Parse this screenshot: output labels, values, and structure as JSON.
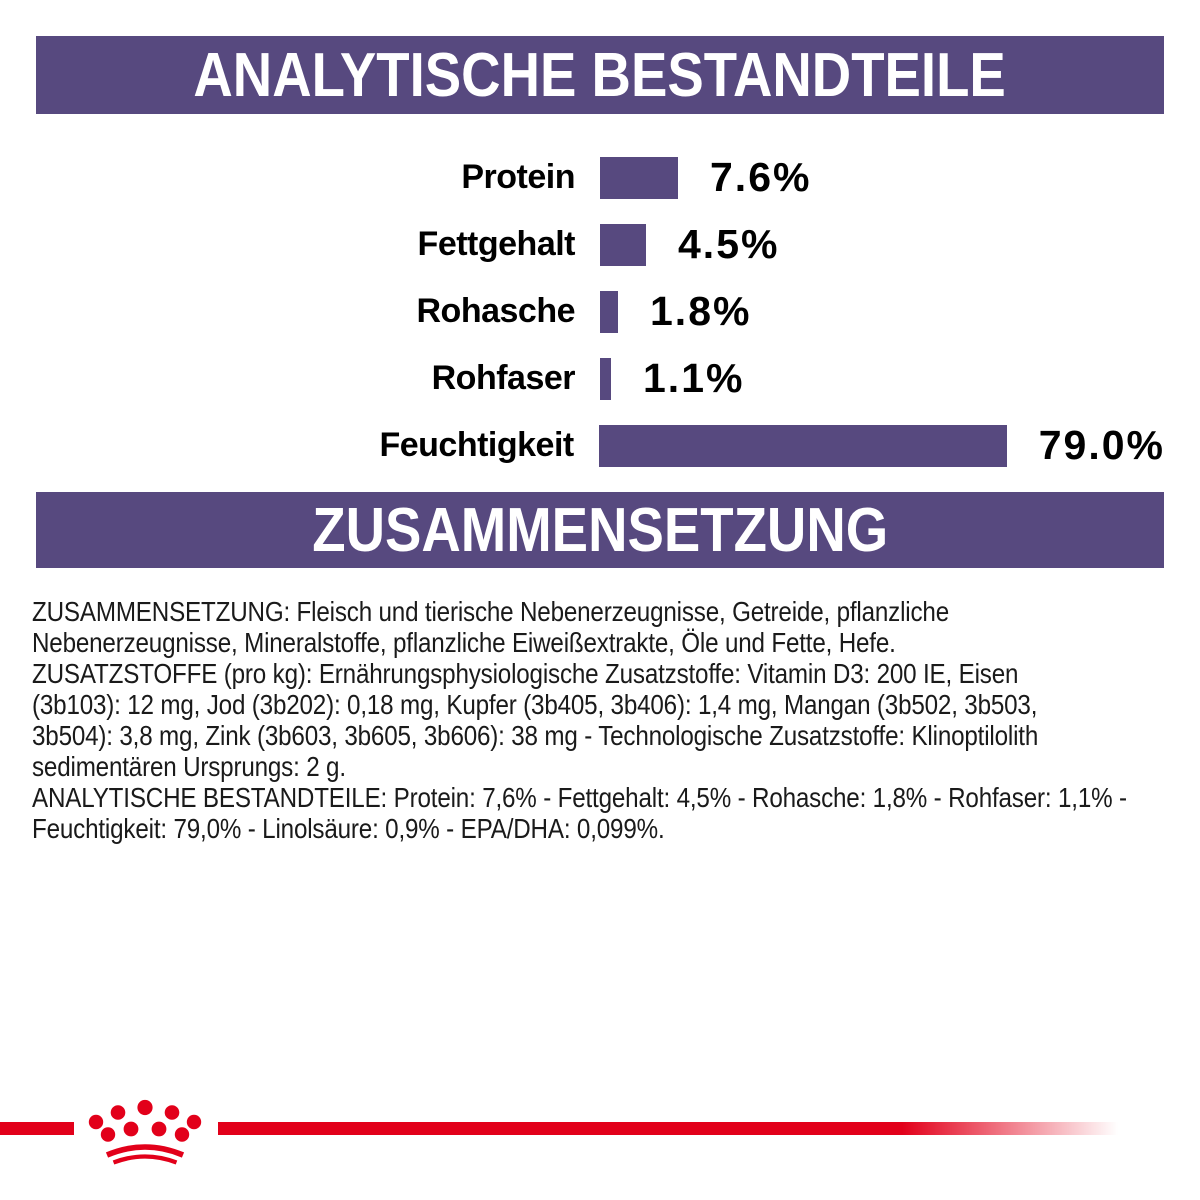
{
  "colors": {
    "purple": "#57497F",
    "red": "#E2001A",
    "text": "#1A1A1A",
    "background": "#FFFFFF"
  },
  "headers": {
    "analytical": "ANALYTISCHE BESTANDTEILE",
    "composition": "ZUSAMMENSETZUNG"
  },
  "chart_data": {
    "type": "bar",
    "orientation": "horizontal",
    "title": "ANALYTISCHE BESTANDTEILE",
    "categories": [
      "Protein",
      "Fettgehalt",
      "Rohasche",
      "Rohfaser",
      "Feuchtigkeit"
    ],
    "values": [
      7.6,
      4.5,
      1.8,
      1.1,
      79.0
    ],
    "value_labels": [
      "7.6%",
      "4.5%",
      "1.8%",
      "1.1%",
      "79.0%"
    ],
    "unit": "%",
    "bar_color": "#57497F",
    "axis": "none",
    "grid": false,
    "legend": false,
    "value_label_position": "right-of-bar",
    "layout_note": "bar length proportional to value; longest bar (79.0%) clipped to fit panel width"
  },
  "composition": {
    "paragraphs": [
      {
        "lines": [
          "ZUSAMMENSETZUNG: Fleisch und tierische Nebenerzeugnisse, Getreide, pflanzliche",
          "Nebenerzeugnisse, Mineralstoffe, pflanzliche Eiweißextrakte, Öle und Fette, Hefe."
        ]
      },
      {
        "lines": [
          "ZUSATZSTOFFE (pro kg): Ernährungsphysiologische Zusatzstoffe: Vitamin D3: 200 IE, Eisen",
          "(3b103): 12 mg, Jod (3b202): 0,18 mg, Kupfer (3b405, 3b406): 1,4 mg, Mangan (3b502, 3b503,",
          "3b504): 3,8 mg, Zink (3b603, 3b605, 3b606): 38 mg - Technologische Zusatzstoffe: Klinoptilolith",
          "sedimentären Ursprungs: 2 g."
        ]
      },
      {
        "lines": [
          "ANALYTISCHE BESTANDTEILE: Protein: 7,6% - Fettgehalt: 4,5% - Rohasche: 1,8% - Rohfaser: 1,1% -",
          "Feuchtigkeit: 79,0% - Linolsäure: 0,9% - EPA/DHA: 0,099%."
        ]
      }
    ]
  },
  "footer": {
    "logo": "royal-canin-crown-icon"
  }
}
